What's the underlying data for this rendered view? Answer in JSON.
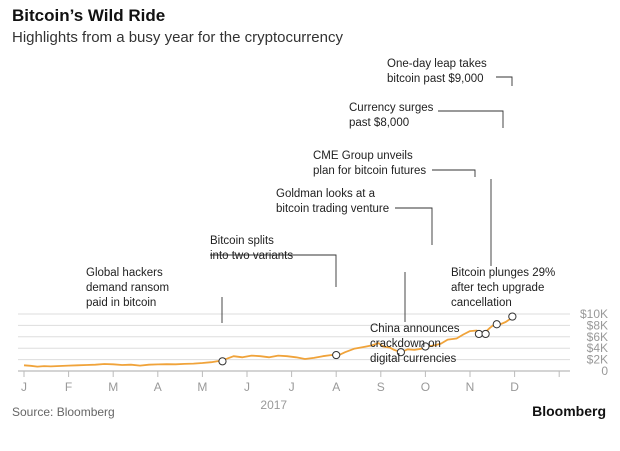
{
  "header": {
    "title": "Bitcoin’s Wild Ride",
    "subtitle": "Highlights from a busy year for the cryptocurrency"
  },
  "footer": {
    "source": "Source: Bloomberg",
    "brand": "Bloomberg"
  },
  "colors": {
    "line": "#f0a33a",
    "grid": "#dddddd",
    "axis": "#bbbbbb",
    "tick_text": "#999999",
    "annotation_text": "#222222"
  },
  "chart_data": {
    "type": "line",
    "title": "Bitcoin’s Wild Ride",
    "subtitle": "Highlights from a busy year for the cryptocurrency",
    "xlabel": "2017",
    "ylabel": "",
    "x_tick_labels": [
      "J",
      "F",
      "M",
      "A",
      "M",
      "J",
      "J",
      "A",
      "S",
      "O",
      "N",
      "D"
    ],
    "y_ticks": [
      0,
      2000,
      4000,
      6000,
      8000,
      10000
    ],
    "y_tick_labels": [
      "0",
      "$2K",
      "$4K",
      "$6K",
      "$8K",
      "$10K"
    ],
    "ylim": [
      0,
      10000
    ],
    "grid": true,
    "series": [
      {
        "x": [
          0.0,
          0.15,
          0.3,
          0.45,
          0.6,
          0.8,
          1.0,
          1.2,
          1.4,
          1.6,
          1.8,
          2.0,
          2.2,
          2.4,
          2.6,
          2.8,
          3.0,
          3.2,
          3.4,
          3.6,
          3.8,
          4.0,
          4.2,
          4.4,
          4.55,
          4.7,
          4.9,
          5.1,
          5.3,
          5.5,
          5.7,
          5.9,
          6.1,
          6.3,
          6.5,
          6.7,
          6.9,
          7.05,
          7.2,
          7.4,
          7.6,
          7.8,
          7.95,
          8.05,
          8.2,
          8.3,
          8.45,
          8.6,
          8.75,
          8.9,
          9.05,
          9.2,
          9.35,
          9.5,
          9.7,
          9.85,
          10.0,
          10.15,
          10.3,
          10.45,
          10.55,
          10.65,
          10.8,
          10.95,
          11.0
        ],
        "y": [
          1000,
          920,
          780,
          860,
          800,
          870,
          950,
          1000,
          1050,
          1100,
          1230,
          1180,
          1050,
          1100,
          950,
          1100,
          1150,
          1200,
          1180,
          1250,
          1300,
          1400,
          1550,
          1800,
          2150,
          2600,
          2400,
          2700,
          2600,
          2400,
          2700,
          2600,
          2400,
          2100,
          2300,
          2600,
          2800,
          2750,
          3300,
          3900,
          4200,
          4500,
          4900,
          4300,
          4100,
          3700,
          3300,
          3800,
          3700,
          3900,
          4300,
          4500,
          4800,
          5500,
          5700,
          6400,
          7000,
          7100,
          6500,
          7600,
          8200,
          8100,
          8600,
          9400,
          9800
        ]
      }
    ],
    "annotations": [
      {
        "text": [
          "Global hackers",
          "demand ransom",
          "paid in bitcoin"
        ],
        "x": 4.45,
        "y": 1700
      },
      {
        "text": [
          "Bitcoin splits",
          "into two variants"
        ],
        "x": 7.0,
        "y": 2800
      },
      {
        "text": [
          "Goldman looks at a",
          "bitcoin trading venture"
        ],
        "x": 9.0,
        "y": 4300
      },
      {
        "text": [
          "CME Group unveils",
          "plan for bitcoin futures"
        ],
        "x": 10.2,
        "y": 6500
      },
      {
        "text": [
          "Currency surges",
          "past $8,000"
        ],
        "x": 10.6,
        "y": 8200
      },
      {
        "text": [
          "One-day leap takes",
          "bitcoin past $9,000"
        ],
        "x": 10.95,
        "y": 9550
      },
      {
        "text": [
          "China announces",
          "crackdown on",
          "digital currencies"
        ],
        "x": 8.45,
        "y": 3300
      },
      {
        "text": [
          "Bitcoin plunges 29%",
          "after tech upgrade",
          "cancellation"
        ],
        "x": 10.35,
        "y": 6500
      }
    ]
  }
}
